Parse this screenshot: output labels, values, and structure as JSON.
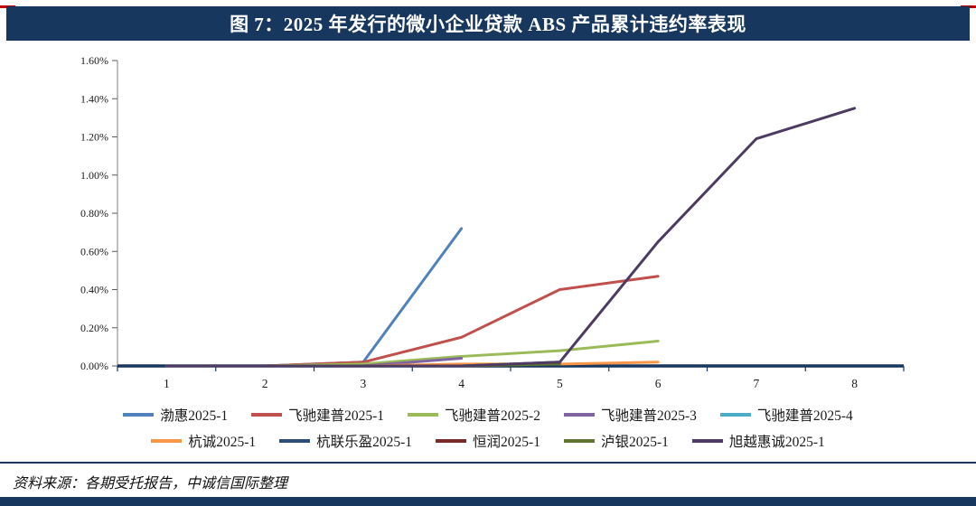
{
  "header": {
    "title": "图 7：2025 年发行的微小企业贷款 ABS 产品累计违约率表现"
  },
  "footer": {
    "source": "资料来源：各期受托报告，中诚信国际整理"
  },
  "colors": {
    "navy": "#17375E",
    "red_accent": "#C00000",
    "axis": "#17375E"
  },
  "chart_data": {
    "type": "line",
    "title": "2025 年发行的微小企业贷款 ABS 产品累计违约率表现",
    "xlabel": "",
    "ylabel": "",
    "x": [
      1,
      2,
      3,
      4,
      5,
      6,
      7,
      8
    ],
    "x_tick_labels": [
      "1",
      "2",
      "3",
      "4",
      "5",
      "6",
      "7",
      "8"
    ],
    "y_tick_labels": [
      "0.00%",
      "0.20%",
      "0.40%",
      "0.60%",
      "0.80%",
      "1.00%",
      "1.20%",
      "1.40%",
      "1.60%"
    ],
    "ylim": [
      0,
      1.6
    ],
    "y_step": 0.2,
    "y_unit": "%",
    "grid": false,
    "legend_position": "bottom",
    "series": [
      {
        "name": "渤惠2025-1",
        "color": "#4F81BD",
        "values": [
          0,
          0,
          0.02,
          0.72
        ]
      },
      {
        "name": "飞驰建普2025-1",
        "color": "#C0504D",
        "values": [
          0,
          0,
          0.02,
          0.15,
          0.4,
          0.47
        ]
      },
      {
        "name": "飞驰建普2025-2",
        "color": "#9BBB59",
        "values": [
          0,
          0,
          0.01,
          0.05,
          0.08,
          0.13
        ]
      },
      {
        "name": "飞驰建普2025-3",
        "color": "#8064A2",
        "values": [
          0,
          0,
          0,
          0.04
        ]
      },
      {
        "name": "飞驰建普2025-4",
        "color": "#4BACC6",
        "values": [
          0,
          0,
          0
        ]
      },
      {
        "name": "杭诚2025-1",
        "color": "#F79646",
        "values": [
          0,
          0,
          0,
          0.01,
          0.01,
          0.02
        ]
      },
      {
        "name": "杭联乐盈2025-1",
        "color": "#2C4D75",
        "values": [
          0,
          0,
          0,
          0,
          0.02
        ]
      },
      {
        "name": "恒润2025-1",
        "color": "#772C2A",
        "values": [
          0,
          0,
          0,
          0
        ]
      },
      {
        "name": "泸银2025-1",
        "color": "#5F7530",
        "values": [
          0,
          0,
          0,
          0,
          0.01
        ]
      },
      {
        "name": "旭越惠诚2025-1",
        "color": "#4D3B62",
        "values": [
          0,
          0,
          0,
          0,
          0.02,
          0.65,
          1.19,
          1.35
        ]
      }
    ]
  }
}
